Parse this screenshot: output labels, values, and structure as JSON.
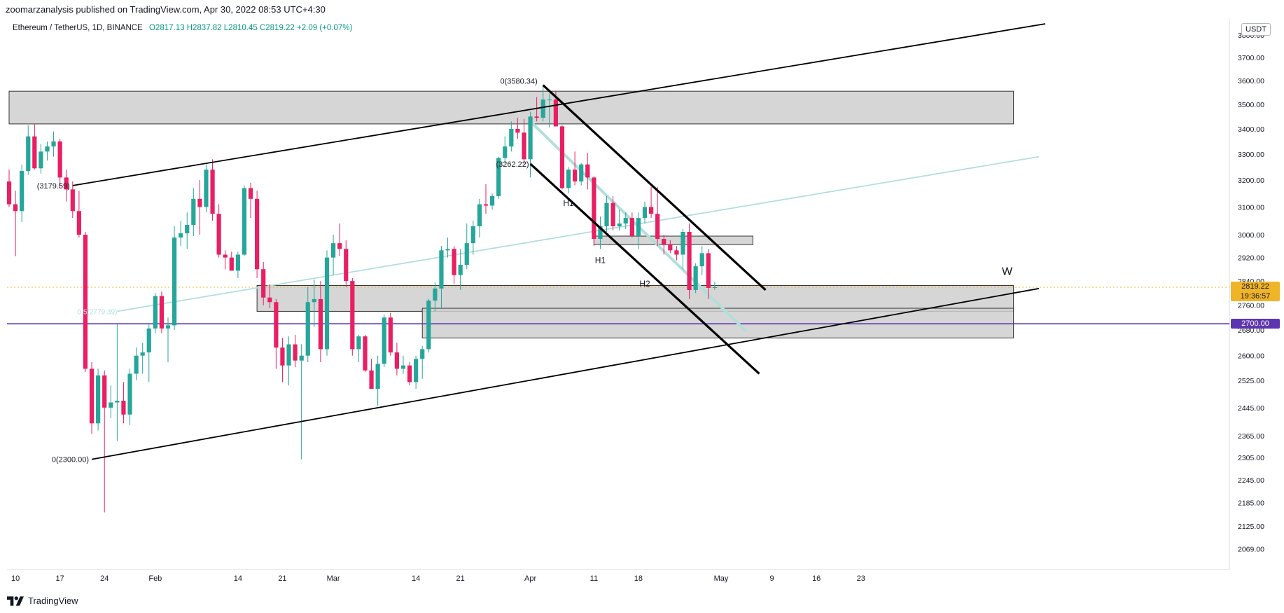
{
  "publisher_line": "zoomarzanalysis published on TradingView.com, Apr 30, 2022 08:53 UTC+4:30",
  "symbol": {
    "name": "Ethereum / TetherUS, 1D, BINANCE",
    "open": "O2817.13",
    "high": "H2837.82",
    "low": "L2810.45",
    "close": "C2819.22",
    "change": "+2.09 (+0.07%)"
  },
  "currency": "USDT",
  "footer": "TradingView",
  "colors": {
    "up": "#26a69a",
    "down": "#e91e63",
    "zone_fill": "#cfcfcf",
    "channel": "#000000",
    "faint_line": "#b2dfdb",
    "level_line": "#5e35b1",
    "price_tag": "#f0b429"
  },
  "chart_data": {
    "type": "candlestick",
    "x_tick_labels": [
      "10",
      "17",
      "24",
      "Feb",
      "14",
      "21",
      "Mar",
      "14",
      "21",
      "Apr",
      "11",
      "18",
      "May",
      "9",
      "16",
      "23"
    ],
    "y_tick_labels": [
      "3800.00",
      "3700.00",
      "3600.00",
      "3500.00",
      "3400.00",
      "3300.00",
      "3200.00",
      "3100.00",
      "3000.00",
      "2920.00",
      "2840.00",
      "2760.00",
      "2680.00",
      "2600.00",
      "2525.00",
      "2445.00",
      "2365.00",
      "2305.00",
      "2245.00",
      "2185.00",
      "2125.00",
      "2069.00"
    ],
    "current_price": {
      "value": "2819.22",
      "countdown": "19:36:57"
    },
    "level_price": "2700.00",
    "annotations": [
      "0(3580.34)",
      "(3179.59)",
      "(3262.22)",
      "0(2300.00)",
      "0.5(2779.39)",
      "H1",
      "H1",
      "H2",
      "W"
    ],
    "candles": [
      {
        "d": "2022-01-09",
        "o": 3195,
        "h": 3240,
        "l": 3100,
        "c": 3110
      },
      {
        "d": "2022-01-10",
        "o": 3110,
        "h": 3160,
        "l": 2925,
        "c": 3085
      },
      {
        "d": "2022-01-11",
        "o": 3085,
        "h": 3260,
        "l": 3045,
        "c": 3235
      },
      {
        "d": "2022-01-12",
        "o": 3235,
        "h": 3415,
        "l": 3220,
        "c": 3370
      },
      {
        "d": "2022-01-13",
        "o": 3370,
        "h": 3420,
        "l": 3240,
        "c": 3245
      },
      {
        "d": "2022-01-14",
        "o": 3245,
        "h": 3340,
        "l": 3225,
        "c": 3310
      },
      {
        "d": "2022-01-15",
        "o": 3310,
        "h": 3350,
        "l": 3275,
        "c": 3330
      },
      {
        "d": "2022-01-16",
        "o": 3330,
        "h": 3390,
        "l": 3290,
        "c": 3350
      },
      {
        "d": "2022-01-17",
        "o": 3350,
        "h": 3360,
        "l": 3170,
        "c": 3210
      },
      {
        "d": "2022-01-18",
        "o": 3210,
        "h": 3240,
        "l": 3120,
        "c": 3165
      },
      {
        "d": "2022-01-19",
        "o": 3165,
        "h": 3195,
        "l": 3060,
        "c": 3085
      },
      {
        "d": "2022-01-20",
        "o": 3085,
        "h": 3160,
        "l": 2990,
        "c": 3000
      },
      {
        "d": "2022-01-21",
        "o": 3000,
        "h": 3010,
        "l": 2550,
        "c": 2560
      },
      {
        "d": "2022-01-22",
        "o": 2560,
        "h": 2580,
        "l": 2370,
        "c": 2400
      },
      {
        "d": "2022-01-23",
        "o": 2400,
        "h": 2560,
        "l": 2380,
        "c": 2540
      },
      {
        "d": "2022-01-24",
        "o": 2540,
        "h": 2555,
        "l": 2160,
        "c": 2445
      },
      {
        "d": "2022-01-25",
        "o": 2445,
        "h": 2510,
        "l": 2415,
        "c": 2460
      },
      {
        "d": "2022-01-26",
        "o": 2460,
        "h": 2700,
        "l": 2350,
        "c": 2465
      },
      {
        "d": "2022-01-27",
        "o": 2465,
        "h": 2520,
        "l": 2400,
        "c": 2425
      },
      {
        "d": "2022-01-28",
        "o": 2425,
        "h": 2560,
        "l": 2395,
        "c": 2545
      },
      {
        "d": "2022-01-29",
        "o": 2545,
        "h": 2625,
        "l": 2525,
        "c": 2600
      },
      {
        "d": "2022-01-30",
        "o": 2600,
        "h": 2640,
        "l": 2545,
        "c": 2610
      },
      {
        "d": "2022-01-31",
        "o": 2610,
        "h": 2700,
        "l": 2520,
        "c": 2685
      },
      {
        "d": "2022-02-01",
        "o": 2685,
        "h": 2800,
        "l": 2670,
        "c": 2790
      },
      {
        "d": "2022-02-02",
        "o": 2790,
        "h": 2805,
        "l": 2670,
        "c": 2685
      },
      {
        "d": "2022-02-03",
        "o": 2685,
        "h": 2720,
        "l": 2580,
        "c": 2695
      },
      {
        "d": "2022-02-04",
        "o": 2695,
        "h": 3030,
        "l": 2680,
        "c": 2990
      },
      {
        "d": "2022-02-05",
        "o": 2990,
        "h": 3050,
        "l": 2960,
        "c": 3005
      },
      {
        "d": "2022-02-06",
        "o": 3005,
        "h": 3080,
        "l": 2950,
        "c": 3035
      },
      {
        "d": "2022-02-07",
        "o": 3035,
        "h": 3170,
        "l": 2995,
        "c": 3130
      },
      {
        "d": "2022-02-08",
        "o": 3130,
        "h": 3200,
        "l": 3000,
        "c": 3100
      },
      {
        "d": "2022-02-09",
        "o": 3100,
        "h": 3260,
        "l": 3080,
        "c": 3240
      },
      {
        "d": "2022-02-10",
        "o": 3240,
        "h": 3280,
        "l": 3050,
        "c": 3075
      },
      {
        "d": "2022-02-11",
        "o": 3075,
        "h": 3110,
        "l": 2920,
        "c": 2930
      },
      {
        "d": "2022-02-12",
        "o": 2930,
        "h": 2945,
        "l": 2880,
        "c": 2920
      },
      {
        "d": "2022-02-13",
        "o": 2920,
        "h": 2940,
        "l": 2875,
        "c": 2875
      },
      {
        "d": "2022-02-14",
        "o": 2875,
        "h": 2940,
        "l": 2850,
        "c": 2930
      },
      {
        "d": "2022-02-15",
        "o": 2930,
        "h": 3180,
        "l": 2925,
        "c": 3170
      },
      {
        "d": "2022-02-16",
        "o": 3170,
        "h": 3190,
        "l": 3060,
        "c": 3130
      },
      {
        "d": "2022-02-17",
        "o": 3130,
        "h": 3160,
        "l": 2850,
        "c": 2880
      },
      {
        "d": "2022-02-18",
        "o": 2880,
        "h": 2905,
        "l": 2760,
        "c": 2785
      },
      {
        "d": "2022-02-19",
        "o": 2785,
        "h": 2830,
        "l": 2750,
        "c": 2770
      },
      {
        "d": "2022-02-20",
        "o": 2770,
        "h": 2780,
        "l": 2560,
        "c": 2625
      },
      {
        "d": "2022-02-21",
        "o": 2625,
        "h": 2655,
        "l": 2520,
        "c": 2570
      },
      {
        "d": "2022-02-22",
        "o": 2570,
        "h": 2660,
        "l": 2510,
        "c": 2635
      },
      {
        "d": "2022-02-23",
        "o": 2635,
        "h": 2665,
        "l": 2565,
        "c": 2585
      },
      {
        "d": "2022-02-24",
        "o": 2585,
        "h": 2635,
        "l": 2300,
        "c": 2600
      },
      {
        "d": "2022-02-25",
        "o": 2600,
        "h": 2820,
        "l": 2580,
        "c": 2770
      },
      {
        "d": "2022-02-26",
        "o": 2770,
        "h": 2845,
        "l": 2690,
        "c": 2780
      },
      {
        "d": "2022-02-27",
        "o": 2780,
        "h": 2840,
        "l": 2580,
        "c": 2620
      },
      {
        "d": "2022-02-28",
        "o": 2620,
        "h": 2945,
        "l": 2600,
        "c": 2920
      },
      {
        "d": "2022-03-01",
        "o": 2920,
        "h": 3000,
        "l": 2860,
        "c": 2970
      },
      {
        "d": "2022-03-02",
        "o": 2970,
        "h": 3040,
        "l": 2925,
        "c": 2950
      },
      {
        "d": "2022-03-03",
        "o": 2950,
        "h": 2980,
        "l": 2820,
        "c": 2840
      },
      {
        "d": "2022-03-04",
        "o": 2840,
        "h": 2850,
        "l": 2600,
        "c": 2620
      },
      {
        "d": "2022-03-05",
        "o": 2620,
        "h": 2665,
        "l": 2580,
        "c": 2660
      },
      {
        "d": "2022-03-06",
        "o": 2660,
        "h": 2665,
        "l": 2550,
        "c": 2555
      },
      {
        "d": "2022-03-07",
        "o": 2555,
        "h": 2590,
        "l": 2500,
        "c": 2500
      },
      {
        "d": "2022-03-08",
        "o": 2500,
        "h": 2600,
        "l": 2450,
        "c": 2575
      },
      {
        "d": "2022-03-09",
        "o": 2575,
        "h": 2730,
        "l": 2565,
        "c": 2720
      },
      {
        "d": "2022-03-10",
        "o": 2720,
        "h": 2735,
        "l": 2600,
        "c": 2610
      },
      {
        "d": "2022-03-11",
        "o": 2610,
        "h": 2640,
        "l": 2540,
        "c": 2560
      },
      {
        "d": "2022-03-12",
        "o": 2560,
        "h": 2600,
        "l": 2545,
        "c": 2570
      },
      {
        "d": "2022-03-13",
        "o": 2570,
        "h": 2580,
        "l": 2510,
        "c": 2520
      },
      {
        "d": "2022-03-14",
        "o": 2520,
        "h": 2600,
        "l": 2500,
        "c": 2590
      },
      {
        "d": "2022-03-15",
        "o": 2590,
        "h": 2630,
        "l": 2530,
        "c": 2620
      },
      {
        "d": "2022-03-16",
        "o": 2620,
        "h": 2780,
        "l": 2610,
        "c": 2775
      },
      {
        "d": "2022-03-17",
        "o": 2775,
        "h": 2835,
        "l": 2740,
        "c": 2815
      },
      {
        "d": "2022-03-18",
        "o": 2815,
        "h": 2960,
        "l": 2750,
        "c": 2945
      },
      {
        "d": "2022-03-19",
        "o": 2945,
        "h": 2990,
        "l": 2920,
        "c": 2950
      },
      {
        "d": "2022-03-20",
        "o": 2950,
        "h": 2960,
        "l": 2830,
        "c": 2860
      },
      {
        "d": "2022-03-21",
        "o": 2860,
        "h": 2950,
        "l": 2810,
        "c": 2895
      },
      {
        "d": "2022-03-22",
        "o": 2895,
        "h": 3040,
        "l": 2880,
        "c": 2970
      },
      {
        "d": "2022-03-23",
        "o": 2970,
        "h": 3050,
        "l": 2930,
        "c": 3030
      },
      {
        "d": "2022-03-24",
        "o": 3030,
        "h": 3130,
        "l": 2990,
        "c": 3110
      },
      {
        "d": "2022-03-25",
        "o": 3110,
        "h": 3185,
        "l": 3075,
        "c": 3105
      },
      {
        "d": "2022-03-26",
        "o": 3105,
        "h": 3150,
        "l": 3090,
        "c": 3140
      },
      {
        "d": "2022-03-27",
        "o": 3140,
        "h": 3290,
        "l": 3130,
        "c": 3285
      },
      {
        "d": "2022-03-28",
        "o": 3285,
        "h": 3370,
        "l": 3265,
        "c": 3330
      },
      {
        "d": "2022-03-29",
        "o": 3330,
        "h": 3430,
        "l": 3310,
        "c": 3400
      },
      {
        "d": "2022-03-30",
        "o": 3400,
        "h": 3445,
        "l": 3360,
        "c": 3385
      },
      {
        "d": "2022-03-31",
        "o": 3385,
        "h": 3440,
        "l": 3260,
        "c": 3280
      },
      {
        "d": "2022-04-01",
        "o": 3280,
        "h": 3470,
        "l": 3210,
        "c": 3450
      },
      {
        "d": "2022-04-02",
        "o": 3450,
        "h": 3530,
        "l": 3430,
        "c": 3445
      },
      {
        "d": "2022-04-03",
        "o": 3445,
        "h": 3580,
        "l": 3430,
        "c": 3520
      },
      {
        "d": "2022-04-04",
        "o": 3520,
        "h": 3545,
        "l": 3405,
        "c": 3520
      },
      {
        "d": "2022-04-05",
        "o": 3520,
        "h": 3555,
        "l": 3410,
        "c": 3410
      },
      {
        "d": "2022-04-06",
        "o": 3410,
        "h": 3415,
        "l": 3165,
        "c": 3170
      },
      {
        "d": "2022-04-07",
        "o": 3170,
        "h": 3250,
        "l": 3150,
        "c": 3240
      },
      {
        "d": "2022-04-08",
        "o": 3240,
        "h": 3310,
        "l": 3180,
        "c": 3195
      },
      {
        "d": "2022-04-09",
        "o": 3195,
        "h": 3265,
        "l": 3180,
        "c": 3260
      },
      {
        "d": "2022-04-10",
        "o": 3260,
        "h": 3305,
        "l": 3165,
        "c": 3210
      },
      {
        "d": "2022-04-11",
        "o": 3210,
        "h": 3215,
        "l": 2960,
        "c": 2985
      },
      {
        "d": "2022-04-12",
        "o": 2985,
        "h": 3065,
        "l": 2950,
        "c": 3030
      },
      {
        "d": "2022-04-13",
        "o": 3030,
        "h": 3140,
        "l": 3010,
        "c": 3115
      },
      {
        "d": "2022-04-14",
        "o": 3115,
        "h": 3140,
        "l": 3015,
        "c": 3030
      },
      {
        "d": "2022-04-15",
        "o": 3030,
        "h": 3090,
        "l": 3015,
        "c": 3040
      },
      {
        "d": "2022-04-16",
        "o": 3040,
        "h": 3080,
        "l": 3020,
        "c": 3060
      },
      {
        "d": "2022-04-17",
        "o": 3060,
        "h": 3080,
        "l": 2990,
        "c": 2995
      },
      {
        "d": "2022-04-18",
        "o": 2995,
        "h": 3080,
        "l": 2950,
        "c": 3060
      },
      {
        "d": "2022-04-19",
        "o": 3060,
        "h": 3120,
        "l": 3040,
        "c": 3100
      },
      {
        "d": "2022-04-20",
        "o": 3100,
        "h": 3175,
        "l": 3060,
        "c": 3075
      },
      {
        "d": "2022-04-21",
        "o": 3075,
        "h": 3175,
        "l": 2960,
        "c": 2985
      },
      {
        "d": "2022-04-22",
        "o": 2985,
        "h": 3000,
        "l": 2930,
        "c": 2965
      },
      {
        "d": "2022-04-23",
        "o": 2965,
        "h": 2980,
        "l": 2935,
        "c": 2945
      },
      {
        "d": "2022-04-24",
        "o": 2945,
        "h": 2960,
        "l": 2910,
        "c": 2930
      },
      {
        "d": "2022-04-25",
        "o": 2930,
        "h": 3020,
        "l": 2880,
        "c": 3010
      },
      {
        "d": "2022-04-26",
        "o": 3010,
        "h": 3040,
        "l": 2780,
        "c": 2810
      },
      {
        "d": "2022-04-27",
        "o": 2810,
        "h": 2900,
        "l": 2800,
        "c": 2890
      },
      {
        "d": "2022-04-28",
        "o": 2890,
        "h": 2960,
        "l": 2860,
        "c": 2935
      },
      {
        "d": "2022-04-29",
        "o": 2935,
        "h": 2950,
        "l": 2780,
        "c": 2817
      },
      {
        "d": "2022-04-30",
        "o": 2817.13,
        "h": 2837.82,
        "l": 2810.45,
        "c": 2819.22
      }
    ],
    "zones": [
      {
        "from": "2022-01-09",
        "to": "2022-06-16",
        "low": 3420,
        "high": 3555
      },
      {
        "from": "2022-02-17",
        "to": "2022-06-16",
        "low": 2740,
        "high": 2825
      },
      {
        "from": "2022-04-11",
        "to": "2022-05-06",
        "low": 2965,
        "high": 2995
      },
      {
        "from": "2022-03-15",
        "to": "2022-06-16",
        "low": 2655,
        "high": 2750
      }
    ],
    "trend_lines": [
      {
        "from": [
          "2022-01-19",
          3179.59
        ],
        "to": [
          "2022-06-21",
          3850
        ],
        "style": "thin"
      },
      {
        "from": [
          "2022-01-22",
          2300
        ],
        "to": [
          "2022-06-20",
          2815
        ],
        "style": "thin"
      },
      {
        "from": [
          "2022-04-03",
          3580.34
        ],
        "to": [
          "2022-05-08",
          2810
        ],
        "style": "bold"
      },
      {
        "from": [
          "2022-04-01",
          3262.22
        ],
        "to": [
          "2022-05-07",
          2545
        ],
        "style": "bold"
      },
      {
        "from": [
          "2022-01-26",
          2740
        ],
        "to": [
          "2022-06-20",
          3290
        ],
        "style": "faint"
      },
      {
        "from": [
          "2022-04-01",
          3430
        ],
        "to": [
          "2022-05-05",
          2675
        ],
        "style": "faint-bold"
      }
    ],
    "y_scale": "log"
  }
}
